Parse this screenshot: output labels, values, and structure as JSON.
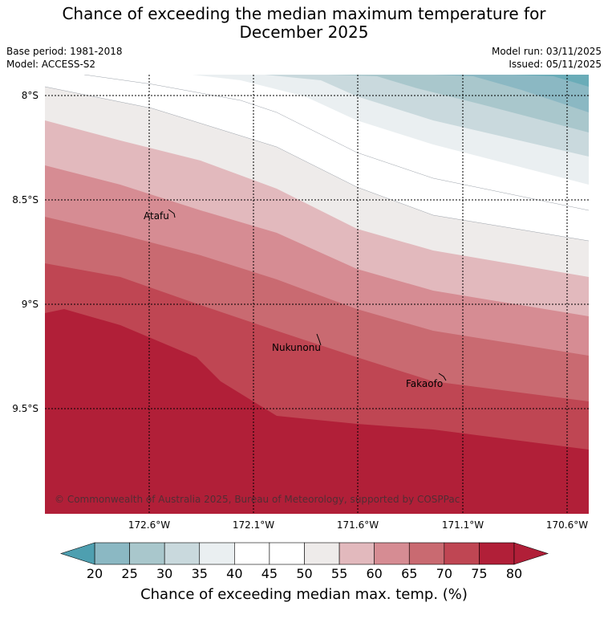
{
  "title_line1": "Chance of exceeding the median maximum temperature for",
  "title_line2": "December 2025",
  "base_period": "Base period: 1981-2018",
  "model": "Model: ACCESS-S2",
  "model_run": "Model run: 03/11/2025",
  "issued": "Issued: 05/11/2025",
  "lat_labels": [
    "8°S",
    "8.5°S",
    "9°S",
    "9.5°S"
  ],
  "lon_labels": [
    "172.6°W",
    "172.1°W",
    "171.6°W",
    "171.1°W",
    "170.6°W"
  ],
  "places": [
    {
      "name": "Atafu"
    },
    {
      "name": "Nukunonu"
    },
    {
      "name": "Fakaofo"
    }
  ],
  "copyright": "© Commonwealth of Australia 2025, Bureau of Meteorology, supported by COSPPac",
  "colorbar": {
    "ticks": [
      "20",
      "25",
      "30",
      "35",
      "40",
      "45",
      "50",
      "55",
      "60",
      "65",
      "70",
      "75",
      "80"
    ],
    "colors": [
      "#6aacb8",
      "#8bb8c3",
      "#a9c7cc",
      "#c9d9dd",
      "#eaeff1",
      "#ffffff",
      "#ffffff",
      "#eeebea",
      "#e2b9bd",
      "#d68c93",
      "#c96a71",
      "#bf4653",
      "#b11f38"
    ],
    "under_color": "#4e9fb0",
    "over_color": "#b11f38",
    "label": "Chance of exceeding median max. temp. (%)"
  }
}
